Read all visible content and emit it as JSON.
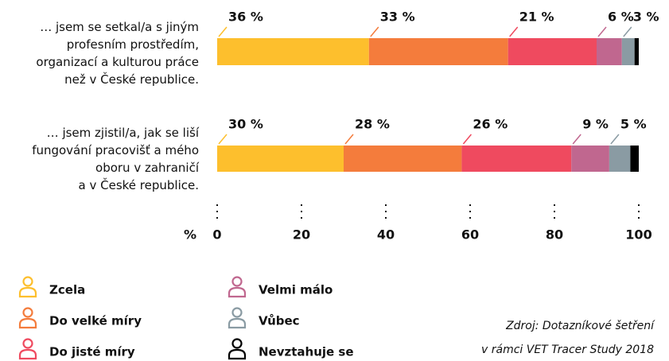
{
  "chart_data": {
    "type": "stacked-barh",
    "categories": [
      "… jsem se setkal/a s jiným\nprofesním prostředím,\norganizací a kulturou práce\nnež v České republice.",
      "… jsem zjistil/a, jak se liší\nfungování pracovišť a mého\noboru v zahraničí\na v České republice."
    ],
    "series": [
      {
        "name": "Zcela",
        "color": "#fdbf2d",
        "values": [
          36,
          30
        ],
        "value_labels": [
          "36 %",
          "30 %"
        ]
      },
      {
        "name": "Do velké míry",
        "color": "#f47c3c",
        "values": [
          33,
          28
        ],
        "value_labels": [
          "33 %",
          "28 %"
        ]
      },
      {
        "name": "Do jisté míry",
        "color": "#ef4a5f",
        "values": [
          21,
          26
        ],
        "value_labels": [
          "21 %",
          "26 %"
        ]
      },
      {
        "name": "Velmi málo",
        "color": "#c0678f",
        "values": [
          6,
          9
        ],
        "value_labels": [
          "6 %",
          "9 %"
        ]
      },
      {
        "name": "Vůbec",
        "color": "#8a9ba3",
        "values": [
          3,
          5
        ],
        "value_labels": [
          "3 %",
          "5 %"
        ]
      },
      {
        "name": "Nevztahuje se",
        "color": "#000000",
        "values": [
          1,
          2
        ],
        "value_labels": [
          null,
          null
        ]
      }
    ],
    "x_label": "%",
    "xlim": [
      0,
      100
    ],
    "xticks": [
      0,
      20,
      40,
      60,
      80,
      100
    ],
    "source": [
      "Zdroj: Dotazníkové šetření",
      "v rámci VET Tracer Study 2018"
    ]
  }
}
